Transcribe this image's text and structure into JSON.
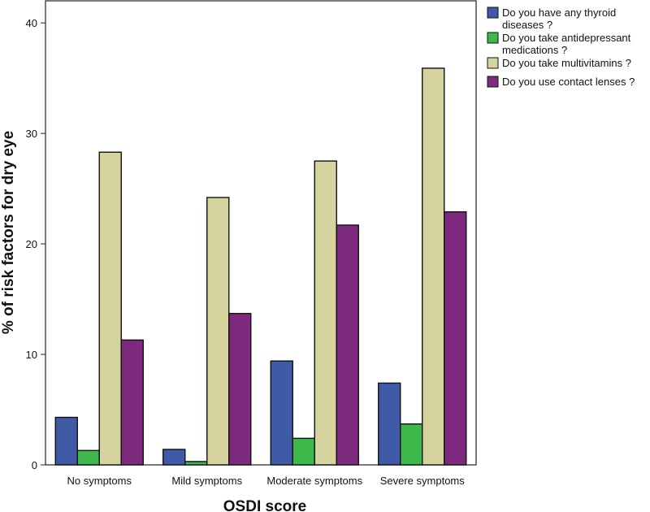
{
  "chart_data": {
    "type": "bar",
    "title": "",
    "xlabel": "OSDI score",
    "ylabel": "% of risk factors for dry eye",
    "categories": [
      "No symptoms",
      "Mild symptoms",
      "Moderate symptoms",
      "Severe symptoms"
    ],
    "ylim": [
      0,
      42
    ],
    "yticks": [
      0,
      10,
      20,
      30,
      40
    ],
    "grid": false,
    "legend_position": "top-right",
    "series": [
      {
        "name": "Do you have any thyroid diseases ?",
        "legend_lines": [
          "Do you have any thyroid",
          "diseases ?"
        ],
        "color": "#3f5ba8",
        "values": [
          4.3,
          1.4,
          9.4,
          7.4
        ]
      },
      {
        "name": "Do you take antidepressant medications ?",
        "legend_lines": [
          "Do you take antidepressant",
          "medications ?"
        ],
        "color": "#3cb94a",
        "values": [
          1.3,
          0.3,
          2.4,
          3.7
        ]
      },
      {
        "name": "Do you take multivitamins ?",
        "legend_lines": [
          "Do you take multivitamins ?"
        ],
        "color": "#d6d49e",
        "values": [
          28.3,
          24.2,
          27.5,
          35.9
        ]
      },
      {
        "name": "Do you use contact lenses ?",
        "legend_lines": [
          "Do you use contact lenses ?"
        ],
        "color": "#7d2a7e",
        "values": [
          11.3,
          13.7,
          21.7,
          22.9
        ]
      }
    ]
  }
}
